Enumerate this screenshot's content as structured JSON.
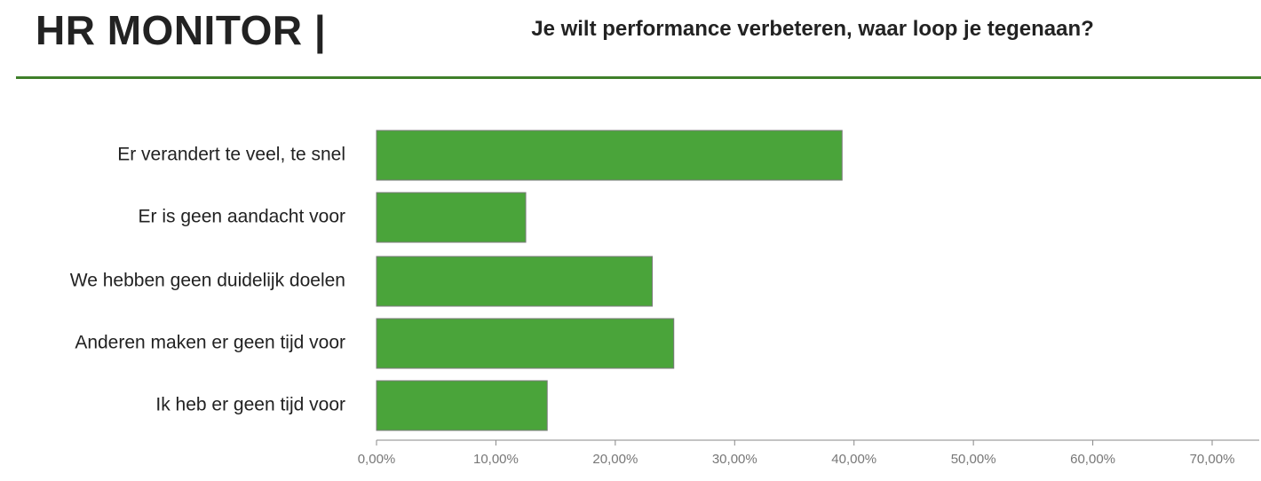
{
  "header": {
    "brand": "HR MONITOR |",
    "rule_color": "#3f7f2a"
  },
  "chart_data": {
    "type": "bar",
    "orientation": "horizontal",
    "title": "Je wilt performance verbeteren, waar loop je tegenaan?",
    "categories": [
      "Er verandert te veel, te snel",
      "Er is geen aandacht voor",
      "We hebben geen duidelijk doelen",
      "Anderen maken er geen tijd voor",
      "Ik heb er geen tijd voor"
    ],
    "values": [
      39.0,
      12.5,
      23.1,
      24.9,
      14.3
    ],
    "unit": "%",
    "xlim": [
      0,
      70
    ],
    "x_ticks": [
      0,
      10,
      20,
      30,
      40,
      50,
      60,
      70
    ],
    "x_tick_labels": [
      "0,00%",
      "10,00%",
      "20,00%",
      "30,00%",
      "40,00%",
      "50,00%",
      "60,00%",
      "70,00%"
    ],
    "grid": false,
    "legend": "none",
    "bar_color": "#4aa43a",
    "bar_border_color": "#7a7a7a"
  }
}
